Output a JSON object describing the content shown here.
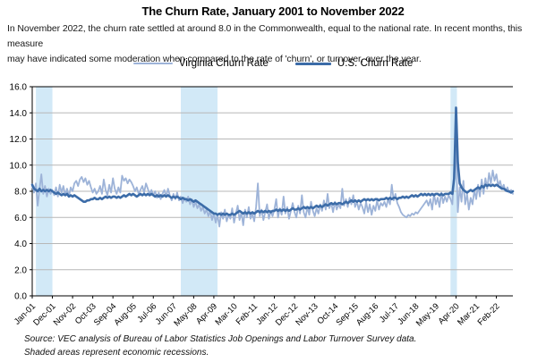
{
  "header": {
    "title": "The Churn Rate, January 2001 to November 2022",
    "subtitle_line1": "In November 2022, the churn rate settled at around 8.0 in the Commonwealth, equal to the national rate. In recent months, this measure",
    "subtitle_line2": "may have indicated some moderation when compared to the rate of 'churn', or turnover, over the year."
  },
  "legend": [
    {
      "label": "Virginia Churn Rate",
      "color": "#9DB3D8"
    },
    {
      "label": "U.S. Churn Rate",
      "color": "#3C6CA8"
    }
  ],
  "footer": {
    "source_line1": "Source: VEC analysis of Bureau of Labor Statistics Job Openings and Labor Turnover Survey data.",
    "source_line2": "Shaded areas represent economic recessions."
  },
  "chart_data": {
    "type": "line",
    "title": "The Churn Rate, January 2001 to November 2022",
    "x_unit": "month",
    "x_start": "Jan-2001",
    "x_end": "Nov-2022",
    "ylim": [
      0,
      16
    ],
    "grid": "horizontal",
    "legend_position": "top-center",
    "y_ticks": [
      0,
      2,
      4,
      6,
      8,
      10,
      12,
      14,
      16
    ],
    "y_tick_labels": [
      "0.0",
      "2.0",
      "4.0",
      "6.0",
      "8.0",
      "10.0",
      "12.0",
      "14.0",
      "16.0"
    ],
    "x_tick_labels": [
      "Jan-01",
      "Dec-01",
      "Nov-02",
      "Oct-03",
      "Sep-04",
      "Aug-05",
      "Jul-06",
      "Jun-07",
      "May-08",
      "Apr-09",
      "Mar-10",
      "Feb-11",
      "Jan-12",
      "Dec-12",
      "Nov-13",
      "Oct-14",
      "Sep-15",
      "Aug-16",
      "Jul-17",
      "Jun-18",
      "May-19",
      "Apr-20",
      "Mar-21",
      "Feb-22"
    ],
    "x_tick_month_indices": [
      0,
      11,
      22,
      33,
      44,
      55,
      66,
      77,
      88,
      99,
      110,
      121,
      132,
      143,
      154,
      165,
      176,
      187,
      198,
      209,
      220,
      231,
      242,
      253
    ],
    "recession_bands": [
      {
        "start": 2,
        "end": 11,
        "note": "2001 recession"
      },
      {
        "start": 81,
        "end": 101,
        "note": "2007-2009 recession"
      },
      {
        "start": 228,
        "end": 231.5,
        "note": "2020 recession"
      }
    ],
    "colors": {
      "virginia_line": "#9DB3D8",
      "us_line": "#3C6CA8",
      "recession_band": "#D2E9F7",
      "gridline": "#B7B7B7",
      "axis": "#000000"
    },
    "series": [
      {
        "name": "Virginia Churn Rate",
        "color": "#9DB3D8",
        "values": [
          8.4,
          7.9,
          8.6,
          6.9,
          8.2,
          9.3,
          7.8,
          8.4,
          7.6,
          8.2,
          7.8,
          8.1,
          7.7,
          8.3,
          7.6,
          8.5,
          7.9,
          8.4,
          7.7,
          8.2,
          7.6,
          8.3,
          8.0,
          8.6,
          8.8,
          8.4,
          8.9,
          9.1,
          8.7,
          9.0,
          8.5,
          8.8,
          8.3,
          7.9,
          8.2,
          7.8,
          8.0,
          8.4,
          7.8,
          8.9,
          8.1,
          7.7,
          8.5,
          7.9,
          9.0,
          8.2,
          7.8,
          8.3,
          7.9,
          9.2,
          8.8,
          9.0,
          8.6,
          8.9,
          8.7,
          8.4,
          8.0,
          8.3,
          7.8,
          8.1,
          8.4,
          7.9,
          8.6,
          8.2,
          7.8,
          8.1,
          7.7,
          8.0,
          7.5,
          7.9,
          7.4,
          7.8,
          8.1,
          7.6,
          8.2,
          7.7,
          7.3,
          7.8,
          7.4,
          7.9,
          7.3,
          7.6,
          7.1,
          7.5,
          7.2,
          7.6,
          7.0,
          7.4,
          6.8,
          7.2,
          6.7,
          7.0,
          6.5,
          6.8,
          6.3,
          6.6,
          6.1,
          6.5,
          5.8,
          6.3,
          5.6,
          6.2,
          5.3,
          6.4,
          5.9,
          6.6,
          5.7,
          6.2,
          5.9,
          6.7,
          5.6,
          6.3,
          6.9,
          5.8,
          6.4,
          5.4,
          6.6,
          6.0,
          6.8,
          5.9,
          6.3,
          5.7,
          6.8,
          8.6,
          6.1,
          6.6,
          5.8,
          6.4,
          7.0,
          5.9,
          6.5,
          6.1,
          6.6,
          7.4,
          6.0,
          6.7,
          6.2,
          7.6,
          6.3,
          6.8,
          5.9,
          6.5,
          7.1,
          6.4,
          6.0,
          6.9,
          6.3,
          7.7,
          6.4,
          6.0,
          6.8,
          6.2,
          7.2,
          6.5,
          6.1,
          6.7,
          6.3,
          7.0,
          6.5,
          7.3,
          6.6,
          7.8,
          6.7,
          7.1,
          6.4,
          7.2,
          6.6,
          7.0,
          6.7,
          8.2,
          6.9,
          7.4,
          6.8,
          7.5,
          7.0,
          7.7,
          6.8,
          7.2,
          6.6,
          7.1,
          6.8,
          6.3,
          7.2,
          6.4,
          7.0,
          6.2,
          6.9,
          6.5,
          7.3,
          6.6,
          7.1,
          6.9,
          7.2,
          6.8,
          7.4,
          7.0,
          8.5,
          7.3,
          7.8,
          7.1,
          6.8,
          6.4,
          6.2,
          6.1,
          6.0,
          6.2,
          6.1,
          6.3,
          6.2,
          6.4,
          6.3,
          6.5,
          6.7,
          6.9,
          7.1,
          7.3,
          6.9,
          7.4,
          6.6,
          7.8,
          7.0,
          7.5,
          6.8,
          7.9,
          7.1,
          7.6,
          7.2,
          7.7,
          7.4,
          7.0,
          9.6,
          11.2,
          6.4,
          8.3,
          7.2,
          8.8,
          7.0,
          7.8,
          6.6,
          7.5,
          7.0,
          8.1,
          7.4,
          8.5,
          7.6,
          8.9,
          7.8,
          9.0,
          8.2,
          9.4,
          8.6,
          9.6,
          8.8,
          9.3,
          8.4,
          8.8,
          8.2,
          8.5,
          8.0,
          8.3,
          7.9,
          8.1,
          7.8
        ]
      },
      {
        "name": "U.S. Churn Rate",
        "color": "#3C6CA8",
        "values": [
          8.5,
          8.2,
          8.1,
          8.0,
          8.2,
          8.0,
          8.1,
          8.0,
          8.1,
          8.0,
          8.1,
          8.0,
          7.9,
          7.8,
          7.9,
          7.8,
          7.7,
          7.8,
          7.7,
          7.8,
          7.6,
          7.7,
          7.6,
          7.7,
          7.6,
          7.5,
          7.4,
          7.3,
          7.2,
          7.2,
          7.3,
          7.3,
          7.4,
          7.4,
          7.5,
          7.4,
          7.4,
          7.5,
          7.4,
          7.5,
          7.6,
          7.5,
          7.6,
          7.5,
          7.6,
          7.6,
          7.5,
          7.6,
          7.5,
          7.6,
          7.7,
          7.6,
          7.7,
          7.8,
          7.7,
          7.8,
          7.7,
          7.6,
          7.7,
          7.8,
          7.7,
          7.8,
          7.7,
          7.8,
          7.7,
          7.8,
          7.7,
          7.6,
          7.7,
          7.6,
          7.7,
          7.6,
          7.7,
          7.6,
          7.7,
          7.6,
          7.5,
          7.6,
          7.5,
          7.6,
          7.5,
          7.4,
          7.5,
          7.4,
          7.4,
          7.3,
          7.4,
          7.3,
          7.2,
          7.3,
          7.2,
          7.1,
          7.0,
          6.9,
          6.8,
          6.7,
          6.6,
          6.5,
          6.4,
          6.3,
          6.3,
          6.2,
          6.3,
          6.2,
          6.3,
          6.2,
          6.3,
          6.2,
          6.2,
          6.3,
          6.2,
          6.3,
          6.4,
          6.5,
          6.4,
          6.3,
          6.4,
          6.3,
          6.4,
          6.3,
          6.4,
          6.3,
          6.4,
          6.5,
          6.4,
          6.5,
          6.4,
          6.5,
          6.4,
          6.5,
          6.4,
          6.5,
          6.5,
          6.6,
          6.5,
          6.6,
          6.5,
          6.6,
          6.5,
          6.6,
          6.5,
          6.6,
          6.7,
          6.6,
          6.6,
          6.7,
          6.6,
          6.7,
          6.8,
          6.7,
          6.8,
          6.7,
          6.8,
          6.7,
          6.8,
          6.9,
          6.8,
          6.9,
          6.8,
          6.9,
          7.0,
          6.9,
          7.0,
          7.1,
          7.0,
          7.1,
          7.0,
          7.1,
          7.1,
          7.0,
          7.1,
          7.2,
          7.1,
          7.2,
          7.3,
          7.2,
          7.3,
          7.2,
          7.3,
          7.2,
          7.3,
          7.4,
          7.3,
          7.4,
          7.3,
          7.4,
          7.3,
          7.4,
          7.4,
          7.3,
          7.4,
          7.4,
          7.4,
          7.5,
          7.4,
          7.5,
          7.4,
          7.5,
          7.5,
          7.4,
          7.5,
          7.5,
          7.6,
          7.5,
          7.6,
          7.5,
          7.6,
          7.7,
          7.6,
          7.7,
          7.6,
          7.7,
          7.8,
          7.7,
          7.8,
          7.7,
          7.8,
          7.7,
          7.8,
          7.7,
          7.8,
          7.8,
          7.7,
          7.8,
          7.7,
          7.8,
          7.8,
          7.8,
          7.9,
          7.8,
          9.0,
          14.4,
          10.2,
          8.6,
          8.3,
          8.1,
          8.0,
          7.9,
          8.0,
          8.1,
          8.0,
          8.1,
          8.2,
          8.3,
          8.2,
          8.4,
          8.3,
          8.5,
          8.4,
          8.5,
          8.4,
          8.5,
          8.4,
          8.5,
          8.4,
          8.3,
          8.2,
          8.2,
          8.1,
          8.0,
          8.0,
          7.9,
          8.0
        ]
      }
    ]
  }
}
